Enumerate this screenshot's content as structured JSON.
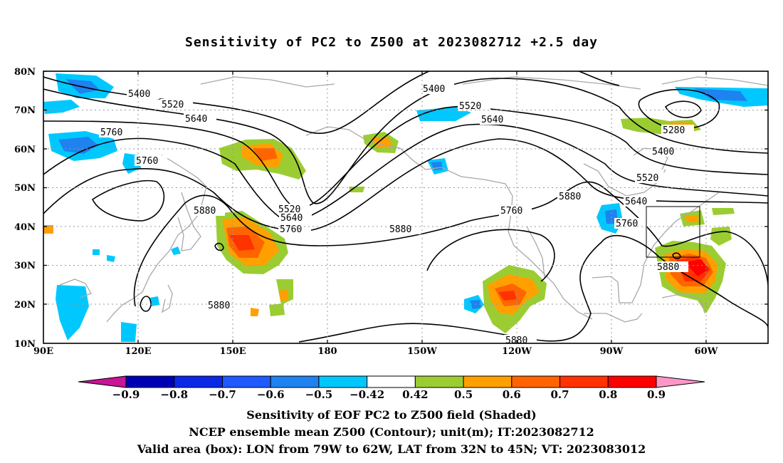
{
  "title": "Sensitivity of PC2 to Z500 at 2023082712 +2.5 day",
  "captions": {
    "line1": "Sensitivity of EOF PC2 to Z500 field (Shaded)",
    "line2": "NCEP ensemble mean Z500 (Contour); unit(m); IT:2023082712",
    "line3": "Valid area (box): LON from 79W to 62W, LAT from 32N to 45N; VT: 2023083012"
  },
  "axes": {
    "lat_labels": [
      "80N",
      "70N",
      "60N",
      "50N",
      "40N",
      "30N",
      "20N",
      "10N"
    ],
    "lon_labels": [
      "90E",
      "120E",
      "150E",
      "180",
      "150W",
      "120W",
      "90W",
      "60W"
    ]
  },
  "contour_labels": [
    "5400",
    "5520",
    "5640",
    "5760",
    "5760",
    "5880",
    "5880",
    "5880",
    "5400",
    "5520",
    "5640",
    "5520",
    "5640",
    "5760",
    "5880",
    "5760",
    "5880",
    "5880",
    "5280",
    "5400",
    "5520",
    "5640",
    "5760",
    "5880",
    "5880"
  ],
  "colorbar": {
    "colors": [
      "#c81496",
      "#0000b4",
      "#0a28e6",
      "#1e5aff",
      "#1e82f0",
      "#00c8ff",
      "#ffffff",
      "#9bcd32",
      "#ffa000",
      "#ff6400",
      "#ff3200",
      "#ff0000",
      "#ff96c8"
    ],
    "labels": [
      "−0.9",
      "−0.8",
      "−0.7",
      "−0.6",
      "−0.5",
      "−0.42",
      "0.42",
      "0.5",
      "0.6",
      "0.7",
      "0.8",
      "0.9"
    ]
  }
}
